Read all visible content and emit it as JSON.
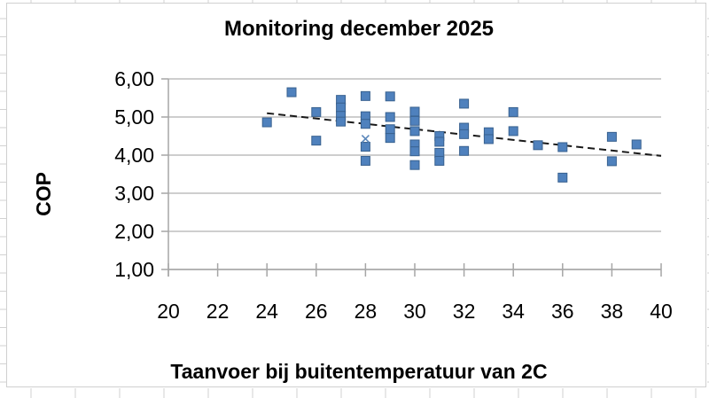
{
  "chart_data": {
    "type": "scatter",
    "title": "Monitoring december 2025",
    "xlabel": "Taanvoer bij buitentemperatuur van 2C",
    "ylabel": "COP",
    "xlim": [
      20,
      40
    ],
    "ylim": [
      1.0,
      6.0
    ],
    "grid": "horizontal",
    "legend": "none",
    "x_ticks": [
      {
        "value": 20,
        "label": "20"
      },
      {
        "value": 22,
        "label": "22"
      },
      {
        "value": 24,
        "label": "24"
      },
      {
        "value": 26,
        "label": "26"
      },
      {
        "value": 28,
        "label": "28"
      },
      {
        "value": 30,
        "label": "30"
      },
      {
        "value": 32,
        "label": "32"
      },
      {
        "value": 34,
        "label": "34"
      },
      {
        "value": 36,
        "label": "36"
      },
      {
        "value": 38,
        "label": "38"
      },
      {
        "value": 40,
        "label": "40"
      }
    ],
    "y_ticks": [
      {
        "value": 6,
        "label": "6,00"
      },
      {
        "value": 5,
        "label": "5,00"
      },
      {
        "value": 4,
        "label": "4,00"
      },
      {
        "value": 3,
        "label": "3,00"
      },
      {
        "value": 2,
        "label": "2,00"
      },
      {
        "value": 1,
        "label": "1,00"
      }
    ],
    "series": [
      {
        "name": "cop-measurements",
        "marker": "square",
        "color": "#4f81bd",
        "edge_color": "#38618f",
        "points": [
          [
            24,
            4.86
          ],
          [
            25,
            5.65
          ],
          [
            26,
            5.13
          ],
          [
            26,
            4.38
          ],
          [
            27,
            5.45
          ],
          [
            27,
            5.25
          ],
          [
            27,
            5.03
          ],
          [
            27,
            4.88
          ],
          [
            28,
            5.55
          ],
          [
            28,
            5.02
          ],
          [
            28,
            4.82
          ],
          [
            28,
            4.22
          ],
          [
            28,
            3.85
          ],
          [
            29,
            5.54
          ],
          [
            29,
            5.0
          ],
          [
            29,
            4.68
          ],
          [
            29,
            4.45
          ],
          [
            30,
            5.14
          ],
          [
            30,
            4.9
          ],
          [
            30,
            4.63
          ],
          [
            30,
            4.28
          ],
          [
            30,
            4.1
          ],
          [
            30,
            3.74
          ],
          [
            31,
            4.5
          ],
          [
            31,
            4.35
          ],
          [
            31,
            4.06
          ],
          [
            31,
            3.85
          ],
          [
            32,
            5.35
          ],
          [
            32,
            4.72
          ],
          [
            32,
            4.55
          ],
          [
            32,
            4.11
          ],
          [
            33,
            4.6
          ],
          [
            33,
            4.42
          ],
          [
            34,
            5.13
          ],
          [
            34,
            4.63
          ],
          [
            35,
            4.26
          ],
          [
            36,
            4.21
          ],
          [
            36,
            3.41
          ],
          [
            38,
            4.48
          ],
          [
            38,
            3.84
          ],
          [
            39,
            4.28
          ]
        ]
      },
      {
        "name": "mean-marker",
        "marker": "x",
        "color": "#5a86ba",
        "points": [
          [
            28,
            4.43
          ]
        ]
      }
    ],
    "trendline": {
      "style": "dashed",
      "color": "#1a1a1a",
      "from": [
        24,
        5.1
      ],
      "to": [
        40,
        3.98
      ]
    },
    "axis_color": "#a6a6a6",
    "gridline_color": "#bdbdbd"
  }
}
